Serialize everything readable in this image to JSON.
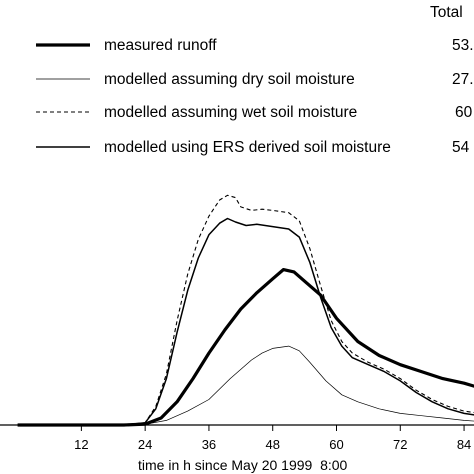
{
  "chart_data": {
    "type": "line",
    "title": "",
    "xlabel": "time in h since May 20 1999  8:00",
    "ylabel": "",
    "xlim": [
      0,
      87
    ],
    "x_ticks": [
      12,
      24,
      36,
      48,
      60,
      72,
      84
    ],
    "grid": false,
    "legend_header": "Total",
    "legend_position": "top",
    "series": [
      {
        "name": "measured runoff",
        "total": "53.",
        "style": "thick",
        "points": [
          [
            0,
            0
          ],
          [
            20,
            0
          ],
          [
            24,
            0.4
          ],
          [
            27,
            3
          ],
          [
            30,
            10
          ],
          [
            33,
            20
          ],
          [
            36,
            31
          ],
          [
            39,
            41
          ],
          [
            42,
            50
          ],
          [
            45,
            57
          ],
          [
            48,
            63
          ],
          [
            50,
            67
          ],
          [
            52,
            66
          ],
          [
            54,
            62
          ],
          [
            57,
            56
          ],
          [
            60,
            46
          ],
          [
            64,
            36
          ],
          [
            68,
            30
          ],
          [
            72,
            26
          ],
          [
            76,
            23
          ],
          [
            80,
            20
          ],
          [
            84,
            18
          ],
          [
            87,
            16
          ]
        ]
      },
      {
        "name": "modelled assuming dry soil moisture",
        "total": "27.",
        "style": "thin",
        "points": [
          [
            0,
            0
          ],
          [
            20,
            0
          ],
          [
            24,
            0.3
          ],
          [
            28,
            2
          ],
          [
            32,
            6
          ],
          [
            36,
            11
          ],
          [
            40,
            20
          ],
          [
            44,
            28
          ],
          [
            46,
            31
          ],
          [
            48,
            33
          ],
          [
            51,
            34
          ],
          [
            53,
            32
          ],
          [
            55,
            27
          ],
          [
            58,
            19
          ],
          [
            61,
            13
          ],
          [
            64,
            10
          ],
          [
            68,
            7
          ],
          [
            72,
            5
          ],
          [
            76,
            4
          ],
          [
            80,
            3
          ],
          [
            84,
            2
          ],
          [
            87,
            1.5
          ]
        ]
      },
      {
        "name": "modelled assuming wet soil moisture",
        "total": "60",
        "style": "dashed",
        "points": [
          [
            0,
            0
          ],
          [
            20,
            0
          ],
          [
            24,
            1
          ],
          [
            26,
            8
          ],
          [
            28,
            22
          ],
          [
            30,
            45
          ],
          [
            32,
            65
          ],
          [
            34,
            80
          ],
          [
            36,
            90
          ],
          [
            38,
            97
          ],
          [
            39.5,
            99
          ],
          [
            41,
            98
          ],
          [
            42,
            94
          ],
          [
            44,
            92.5
          ],
          [
            46,
            93
          ],
          [
            48,
            92.5
          ],
          [
            51,
            91.5
          ],
          [
            53,
            88
          ],
          [
            55,
            76
          ],
          [
            57,
            60
          ],
          [
            59,
            45
          ],
          [
            61,
            36
          ],
          [
            63,
            31
          ],
          [
            66,
            27
          ],
          [
            69,
            24
          ],
          [
            72,
            20
          ],
          [
            75,
            15
          ],
          [
            78,
            11
          ],
          [
            81,
            8
          ],
          [
            84,
            6
          ],
          [
            87,
            5
          ]
        ]
      },
      {
        "name": "modelled using ERS derived soil moisture",
        "total": "54",
        "style": "solid",
        "points": [
          [
            0,
            0
          ],
          [
            20,
            0
          ],
          [
            24,
            1
          ],
          [
            26,
            7
          ],
          [
            28,
            20
          ],
          [
            30,
            40
          ],
          [
            32,
            58
          ],
          [
            34,
            72
          ],
          [
            36,
            82
          ],
          [
            38,
            87
          ],
          [
            39.5,
            89
          ],
          [
            41,
            87.5
          ],
          [
            43,
            86
          ],
          [
            45,
            86.5
          ],
          [
            48,
            85.5
          ],
          [
            51,
            84.5
          ],
          [
            53,
            81
          ],
          [
            55,
            70
          ],
          [
            57,
            55
          ],
          [
            59,
            42
          ],
          [
            61,
            34
          ],
          [
            63,
            29
          ],
          [
            66,
            26
          ],
          [
            69,
            23
          ],
          [
            72,
            19
          ],
          [
            75,
            14
          ],
          [
            78,
            10
          ],
          [
            81,
            7
          ],
          [
            84,
            5
          ],
          [
            87,
            4
          ]
        ]
      }
    ]
  }
}
